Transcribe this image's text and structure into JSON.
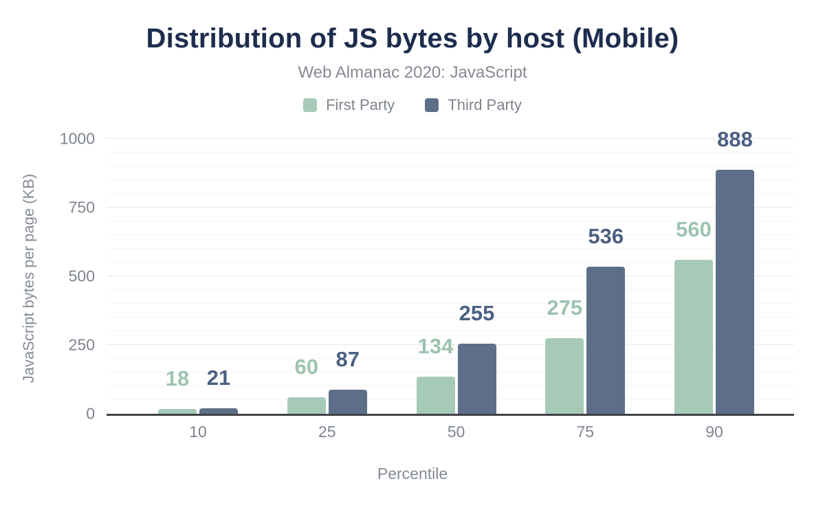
{
  "chart_data": {
    "type": "bar",
    "title": "Distribution of JS bytes by host (Mobile)",
    "subtitle": "Web Almanac 2020: JavaScript",
    "categories": [
      "10",
      "25",
      "50",
      "75",
      "90"
    ],
    "series": [
      {
        "name": "First Party",
        "color": "#a7cab8",
        "label_color": "#9dc3af",
        "values": [
          18,
          60,
          134,
          275,
          560
        ]
      },
      {
        "name": "Third Party",
        "color": "#5d6f88",
        "label_color": "#4b6082",
        "values": [
          21,
          87,
          255,
          536,
          888
        ]
      }
    ],
    "xlabel": "Percentile",
    "ylabel": "JavaScript bytes per page (KB)",
    "ylim": [
      0,
      1000
    ],
    "yticks": [
      0,
      250,
      500,
      750,
      1000
    ],
    "minor_grid_step": 50,
    "grid": true,
    "legend_position": "top",
    "colors": {
      "title": "#1d2d4e",
      "muted_text": "#7e848e",
      "axis_line": "#404348",
      "major_gridline": "#e8e8e8",
      "minor_gridline": "#f4f4f4",
      "background": "#ffffff"
    }
  }
}
